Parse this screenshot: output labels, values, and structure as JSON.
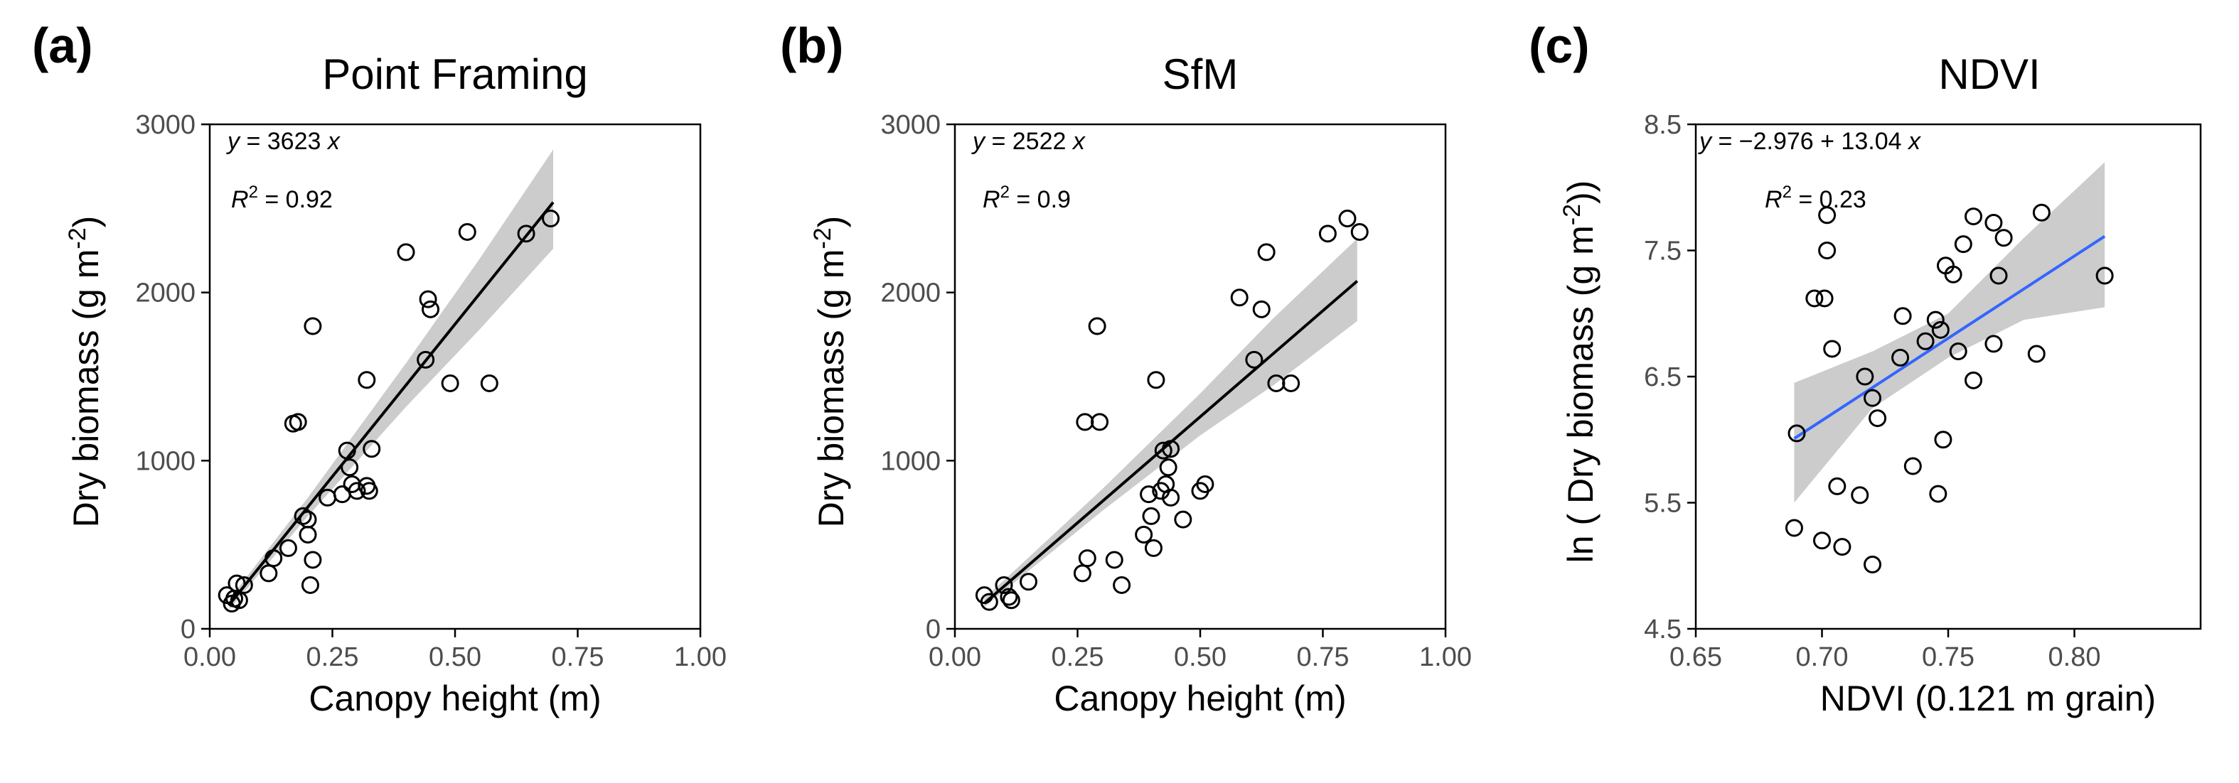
{
  "colors": {
    "background": "#ffffff",
    "axis": "#000000",
    "tick_label": "#4d4d4d",
    "point_stroke": "#000000",
    "ci_band": "#cccccc",
    "fit_line_a": "#000000",
    "fit_line_b": "#000000",
    "fit_line_c": "#3366ff"
  },
  "chart_data": [
    {
      "type": "scatter",
      "panel_label": "(a)",
      "title": "Point Framing",
      "xlabel": "Canopy height (m)",
      "ylabel": "Dry biomass (g m",
      "ylabel_sup": "-2",
      "ylabel_end": ")",
      "xlim": [
        0,
        1
      ],
      "ylim": [
        0,
        3000
      ],
      "x_ticks": [
        0,
        0.25,
        0.5,
        0.75,
        1
      ],
      "x_tick_labels": [
        "0.00",
        "0.25",
        "0.50",
        "0.75",
        "1.00"
      ],
      "y_ticks": [
        0,
        1000,
        2000,
        3000
      ],
      "y_tick_labels": [
        "0",
        "1000",
        "2000",
        "3000"
      ],
      "equation": {
        "lhs": "y",
        "eq": " = 3623 ",
        "var": "x"
      },
      "r2": {
        "label": "R",
        "sup": "2",
        "value": " = 0.92"
      },
      "fit": {
        "type": "linear",
        "intercept": 0,
        "slope": 3623,
        "x_range": [
          0.04,
          0.7
        ]
      },
      "ci": [
        [
          0.04,
          115,
          175
        ],
        [
          0.2,
          670,
          780
        ],
        [
          0.4,
          1320,
          1580
        ],
        [
          0.55,
          1780,
          2200
        ],
        [
          0.7,
          2260,
          2850
        ]
      ],
      "points": [
        {
          "x": 0.035,
          "y": 200
        },
        {
          "x": 0.045,
          "y": 150
        },
        {
          "x": 0.05,
          "y": 180
        },
        {
          "x": 0.055,
          "y": 270
        },
        {
          "x": 0.06,
          "y": 170
        },
        {
          "x": 0.07,
          "y": 260
        },
        {
          "x": 0.12,
          "y": 330
        },
        {
          "x": 0.13,
          "y": 420
        },
        {
          "x": 0.16,
          "y": 480
        },
        {
          "x": 0.17,
          "y": 1220
        },
        {
          "x": 0.18,
          "y": 1230
        },
        {
          "x": 0.19,
          "y": 670
        },
        {
          "x": 0.2,
          "y": 560
        },
        {
          "x": 0.2,
          "y": 650
        },
        {
          "x": 0.205,
          "y": 260
        },
        {
          "x": 0.21,
          "y": 1800
        },
        {
          "x": 0.21,
          "y": 410
        },
        {
          "x": 0.24,
          "y": 780
        },
        {
          "x": 0.27,
          "y": 800
        },
        {
          "x": 0.28,
          "y": 1060
        },
        {
          "x": 0.285,
          "y": 960
        },
        {
          "x": 0.29,
          "y": 860
        },
        {
          "x": 0.3,
          "y": 820
        },
        {
          "x": 0.32,
          "y": 1480
        },
        {
          "x": 0.32,
          "y": 850
        },
        {
          "x": 0.325,
          "y": 820
        },
        {
          "x": 0.33,
          "y": 1070
        },
        {
          "x": 0.4,
          "y": 2240
        },
        {
          "x": 0.44,
          "y": 1600
        },
        {
          "x": 0.445,
          "y": 1960
        },
        {
          "x": 0.45,
          "y": 1900
        },
        {
          "x": 0.49,
          "y": 1460
        },
        {
          "x": 0.525,
          "y": 2360
        },
        {
          "x": 0.57,
          "y": 1460
        },
        {
          "x": 0.645,
          "y": 2350
        },
        {
          "x": 0.695,
          "y": 2440
        }
      ]
    },
    {
      "type": "scatter",
      "panel_label": "(b)",
      "title": "SfM",
      "xlabel": "Canopy height (m)",
      "ylabel": "Dry biomass (g m",
      "ylabel_sup": "-2",
      "ylabel_end": ")",
      "xlim": [
        0,
        1
      ],
      "ylim": [
        0,
        3000
      ],
      "x_ticks": [
        0,
        0.25,
        0.5,
        0.75,
        1
      ],
      "x_tick_labels": [
        "0.00",
        "0.25",
        "0.50",
        "0.75",
        "1.00"
      ],
      "y_ticks": [
        0,
        1000,
        2000,
        3000
      ],
      "y_tick_labels": [
        "0",
        "1000",
        "2000",
        "3000"
      ],
      "equation": {
        "lhs": "y",
        "eq": " = 2522 ",
        "var": "x"
      },
      "r2": {
        "label": "R",
        "sup": "2",
        "value": " = 0.9"
      },
      "fit": {
        "type": "linear",
        "intercept": 0,
        "slope": 2522,
        "x_range": [
          0.06,
          0.82
        ]
      },
      "ci": [
        [
          0.06,
          130,
          180
        ],
        [
          0.3,
          700,
          830
        ],
        [
          0.5,
          1150,
          1400
        ],
        [
          0.65,
          1450,
          1850
        ],
        [
          0.82,
          1830,
          2320
        ]
      ],
      "points": [
        {
          "x": 0.06,
          "y": 200
        },
        {
          "x": 0.07,
          "y": 160
        },
        {
          "x": 0.1,
          "y": 260
        },
        {
          "x": 0.11,
          "y": 190
        },
        {
          "x": 0.115,
          "y": 170
        },
        {
          "x": 0.15,
          "y": 280
        },
        {
          "x": 0.26,
          "y": 330
        },
        {
          "x": 0.265,
          "y": 1230
        },
        {
          "x": 0.27,
          "y": 420
        },
        {
          "x": 0.29,
          "y": 1800
        },
        {
          "x": 0.295,
          "y": 1230
        },
        {
          "x": 0.325,
          "y": 410
        },
        {
          "x": 0.34,
          "y": 260
        },
        {
          "x": 0.385,
          "y": 560
        },
        {
          "x": 0.395,
          "y": 800
        },
        {
          "x": 0.4,
          "y": 670
        },
        {
          "x": 0.405,
          "y": 480
        },
        {
          "x": 0.41,
          "y": 1480
        },
        {
          "x": 0.42,
          "y": 820
        },
        {
          "x": 0.425,
          "y": 1060
        },
        {
          "x": 0.43,
          "y": 860
        },
        {
          "x": 0.435,
          "y": 960
        },
        {
          "x": 0.44,
          "y": 1070
        },
        {
          "x": 0.44,
          "y": 780
        },
        {
          "x": 0.465,
          "y": 650
        },
        {
          "x": 0.5,
          "y": 820
        },
        {
          "x": 0.51,
          "y": 860
        },
        {
          "x": 0.58,
          "y": 1970
        },
        {
          "x": 0.61,
          "y": 1600
        },
        {
          "x": 0.625,
          "y": 1900
        },
        {
          "x": 0.635,
          "y": 2240
        },
        {
          "x": 0.655,
          "y": 1460
        },
        {
          "x": 0.685,
          "y": 1460
        },
        {
          "x": 0.76,
          "y": 2350
        },
        {
          "x": 0.8,
          "y": 2440
        },
        {
          "x": 0.825,
          "y": 2360
        }
      ]
    },
    {
      "type": "scatter",
      "panel_label": "(c)",
      "title": "NDVI",
      "xlabel": "NDVI (0.121 m grain)",
      "ylabel": "ln ( Dry biomass (g m",
      "ylabel_sup": "-2",
      "ylabel_end": "))",
      "xlim": [
        0.65,
        0.85
      ],
      "ylim": [
        4.5,
        8.5
      ],
      "x_ticks": [
        0.65,
        0.7,
        0.75,
        0.8
      ],
      "x_tick_labels": [
        "0.65",
        "0.70",
        "0.75",
        "0.80"
      ],
      "y_ticks": [
        4.5,
        5.5,
        6.5,
        7.5,
        8.5
      ],
      "y_tick_labels": [
        "4.5",
        "5.5",
        "6.5",
        "7.5",
        "8.5"
      ],
      "equation": {
        "lhs": "y",
        "eq": " = −2.976 + 13.04 ",
        "var": "x"
      },
      "r2": {
        "label": "R",
        "sup": "2",
        "value": " = 0.23"
      },
      "fit": {
        "type": "linear",
        "intercept": -2.976,
        "slope": 13.04,
        "x_range": [
          0.689,
          0.812
        ]
      },
      "ci": [
        [
          0.689,
          5.5,
          6.45
        ],
        [
          0.72,
          6.25,
          6.7
        ],
        [
          0.75,
          6.65,
          7.0
        ],
        [
          0.78,
          6.95,
          7.6
        ],
        [
          0.812,
          7.05,
          8.2
        ]
      ],
      "points": [
        {
          "x": 0.689,
          "y": 5.3
        },
        {
          "x": 0.69,
          "y": 6.05
        },
        {
          "x": 0.697,
          "y": 7.12
        },
        {
          "x": 0.7,
          "y": 5.2
        },
        {
          "x": 0.701,
          "y": 7.12
        },
        {
          "x": 0.702,
          "y": 7.78
        },
        {
          "x": 0.702,
          "y": 7.5
        },
        {
          "x": 0.704,
          "y": 6.72
        },
        {
          "x": 0.706,
          "y": 5.63
        },
        {
          "x": 0.708,
          "y": 5.15
        },
        {
          "x": 0.715,
          "y": 5.56
        },
        {
          "x": 0.717,
          "y": 6.5
        },
        {
          "x": 0.72,
          "y": 6.33
        },
        {
          "x": 0.72,
          "y": 5.01
        },
        {
          "x": 0.722,
          "y": 6.17
        },
        {
          "x": 0.731,
          "y": 6.65
        },
        {
          "x": 0.732,
          "y": 6.98
        },
        {
          "x": 0.736,
          "y": 5.79
        },
        {
          "x": 0.741,
          "y": 6.78
        },
        {
          "x": 0.745,
          "y": 6.95
        },
        {
          "x": 0.746,
          "y": 5.57
        },
        {
          "x": 0.747,
          "y": 6.87
        },
        {
          "x": 0.748,
          "y": 6.0
        },
        {
          "x": 0.749,
          "y": 7.38
        },
        {
          "x": 0.752,
          "y": 7.31
        },
        {
          "x": 0.754,
          "y": 6.7
        },
        {
          "x": 0.756,
          "y": 7.55
        },
        {
          "x": 0.76,
          "y": 7.77
        },
        {
          "x": 0.76,
          "y": 6.47
        },
        {
          "x": 0.768,
          "y": 6.76
        },
        {
          "x": 0.768,
          "y": 7.72
        },
        {
          "x": 0.77,
          "y": 7.3
        },
        {
          "x": 0.772,
          "y": 7.6
        },
        {
          "x": 0.785,
          "y": 6.68
        },
        {
          "x": 0.787,
          "y": 7.8
        },
        {
          "x": 0.812,
          "y": 7.3
        }
      ]
    }
  ]
}
